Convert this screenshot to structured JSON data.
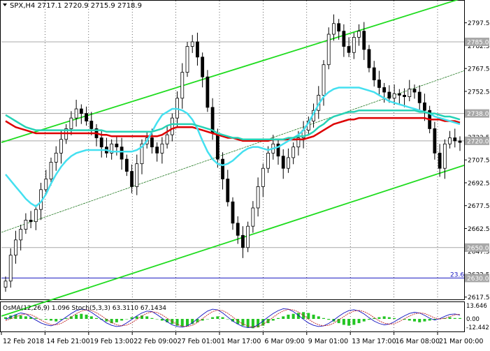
{
  "header": {
    "symbol_line": "SPX,H4  2717.1 2720.9 2715.9 2718.9",
    "indicator_line": "OsMA(12,26,9) 1.096   Stoch(5,3,3) 63.3110 67.1434"
  },
  "colors": {
    "background": "#ffffff",
    "candle": "#000000",
    "channel_green": "#1fdc1f",
    "ema_red": "#dd0000",
    "ema_cyan": "#44e0f0",
    "ema_aqua": "#26d2b6",
    "level_line": "#a8a8a8",
    "label_box": "#a8a8a8",
    "label_text": "#ffffff",
    "horizontal_blue": "#1818c0",
    "osma_green": "#23c523",
    "stoch_main": "#1010c0",
    "stoch_signal": "#c02020"
  },
  "chart_data": [
    {
      "type": "candlestick",
      "timeframe": "H4",
      "ylim": [
        2616,
        2812
      ],
      "y_ticks": [
        2797.5,
        2782.5,
        2767.5,
        2752.5,
        2737.5,
        2722.5,
        2707.5,
        2692.5,
        2677.5,
        2662.5,
        2647.5,
        2632.5,
        2617.5
      ],
      "y_tick_labels": [
        "2797.5",
        "2782.5",
        "2767.5",
        "2752.5",
        "2737.5",
        "2722.5",
        "2707.5",
        "2692.5",
        "2677.5",
        "2662.5",
        "2647.5",
        "2632.5",
        "2617.5"
      ],
      "x_tick_labels": [
        "12 Feb 2018",
        "14 Feb 21:00",
        "19 Feb 13:00",
        "22 Feb 09:00",
        "27 Feb 01:00",
        "1 Mar 17:00",
        "6 Mar 09:00",
        "9 Mar 01:00",
        "13 Mar 17:00",
        "16 Mar 08:00",
        "21 Mar 00:00"
      ],
      "price_labels": [
        {
          "value": 2785.0,
          "text": "2785.0"
        },
        {
          "value": 2738.0,
          "text": "2738.0"
        },
        {
          "value": 2720.0,
          "text": "2720.0"
        },
        {
          "value": 2650.0,
          "text": "2650.0"
        },
        {
          "value": 2630.0,
          "text": "2630.0"
        }
      ],
      "level_lines": [
        2785.0,
        2738.0,
        2720.0,
        2650.0
      ],
      "blue_line": {
        "value": 2630.0,
        "label": "23.6"
      },
      "closes": [
        2628,
        2645,
        2655,
        2662,
        2668,
        2667,
        2675,
        2688,
        2695,
        2706,
        2712,
        2721,
        2728,
        2735,
        2741,
        2738,
        2733,
        2728,
        2722,
        2716,
        2712,
        2718,
        2716,
        2708,
        2700,
        2690,
        2705,
        2718,
        2722,
        2716,
        2712,
        2718,
        2724,
        2735,
        2748,
        2765,
        2782,
        2785,
        2775,
        2762,
        2742,
        2725,
        2708,
        2695,
        2680,
        2666,
        2658,
        2650,
        2664,
        2676,
        2690,
        2702,
        2712,
        2718,
        2710,
        2702,
        2709,
        2716,
        2722,
        2727,
        2733,
        2740,
        2750,
        2770,
        2790,
        2797,
        2792,
        2782,
        2778,
        2788,
        2792,
        2780,
        2768,
        2760,
        2755,
        2752,
        2748,
        2751,
        2750,
        2749,
        2754,
        2752,
        2745,
        2740,
        2728,
        2712,
        2702,
        2718,
        2722,
        2720,
        2719
      ],
      "moving_averages": [
        {
          "color": "#dd0000",
          "values": [
            2733,
            2731,
            2729,
            2728,
            2727,
            2726,
            2725,
            2725,
            2725,
            2725,
            2725,
            2725,
            2725,
            2725,
            2725,
            2725,
            2725,
            2725,
            2725,
            2724,
            2724,
            2723,
            2723,
            2723,
            2723,
            2723,
            2723,
            2723,
            2723,
            2723,
            2723,
            2724,
            2726,
            2728,
            2729,
            2729,
            2729,
            2729,
            2728,
            2727,
            2726,
            2725,
            2724,
            2723,
            2722,
            2722,
            2721,
            2720,
            2720,
            2720,
            2720,
            2720,
            2720,
            2721,
            2721,
            2721,
            2721,
            2721,
            2721,
            2721,
            2722,
            2723,
            2725,
            2727,
            2729,
            2731,
            2732,
            2733,
            2734,
            2734,
            2735,
            2735,
            2735,
            2735,
            2735,
            2735,
            2735,
            2735,
            2735,
            2735,
            2735,
            2735,
            2735,
            2735,
            2734,
            2734,
            2734,
            2733,
            2733,
            2733,
            2732
          ]
        },
        {
          "color": "#44e0f0",
          "values": [
            2698,
            2694,
            2690,
            2686,
            2682,
            2679,
            2677,
            2680,
            2685,
            2692,
            2698,
            2703,
            2707,
            2710,
            2712,
            2713,
            2714,
            2714,
            2714,
            2714,
            2714,
            2713,
            2713,
            2713,
            2713,
            2713,
            2714,
            2716,
            2720,
            2726,
            2732,
            2737,
            2739,
            2741,
            2741,
            2740,
            2738,
            2734,
            2728,
            2720,
            2713,
            2708,
            2705,
            2704,
            2705,
            2707,
            2710,
            2713,
            2715,
            2716,
            2716,
            2715,
            2714,
            2715,
            2716,
            2718,
            2720,
            2722,
            2724,
            2727,
            2732,
            2738,
            2744,
            2749,
            2752,
            2754,
            2755,
            2755,
            2755,
            2755,
            2755,
            2754,
            2753,
            2752,
            2750,
            2748,
            2746,
            2745,
            2744,
            2743,
            2742,
            2741,
            2740,
            2739,
            2738,
            2736,
            2735,
            2734,
            2733,
            2732,
            2731
          ]
        },
        {
          "color": "#26d2b6",
          "values": [
            2737,
            2735,
            2733,
            2731,
            2729,
            2728,
            2727,
            2727,
            2727,
            2727,
            2727,
            2727,
            2727,
            2727,
            2727,
            2727,
            2727,
            2727,
            2727,
            2727,
            2726,
            2726,
            2726,
            2726,
            2726,
            2726,
            2726,
            2726,
            2726,
            2726,
            2727,
            2728,
            2730,
            2731,
            2731,
            2731,
            2731,
            2731,
            2730,
            2729,
            2728,
            2727,
            2725,
            2724,
            2723,
            2722,
            2722,
            2721,
            2721,
            2721,
            2721,
            2721,
            2721,
            2721,
            2721,
            2721,
            2722,
            2722,
            2723,
            2723,
            2724,
            2726,
            2729,
            2731,
            2734,
            2736,
            2737,
            2738,
            2739,
            2739,
            2740,
            2740,
            2740,
            2740,
            2740,
            2740,
            2740,
            2740,
            2740,
            2740,
            2740,
            2740,
            2739,
            2739,
            2738,
            2738,
            2737,
            2736,
            2736,
            2735,
            2734
          ]
        }
      ],
      "channel": {
        "upper": {
          "start": 2719,
          "end": 2814
        },
        "middle": {
          "start": 2660,
          "end": 2766
        },
        "lower": {
          "start": 2605,
          "end": 2704
        }
      }
    },
    {
      "type": "oscillator",
      "name": "OsMA(12,26,9) / Stoch(5,3,3)",
      "y_tick_labels": [
        "13.646",
        "0.00",
        "-12.442"
      ],
      "osma": [
        2,
        4,
        5,
        4,
        3,
        2,
        1,
        0,
        -1,
        -2,
        -3,
        -1,
        1,
        3,
        5,
        6,
        5,
        3,
        1,
        -1,
        -3,
        -5,
        -4,
        -2,
        0,
        2,
        3,
        4,
        3,
        1,
        0,
        -2,
        -4,
        -6,
        -8,
        -9,
        -8,
        -6,
        -4,
        -2,
        0,
        2,
        3,
        2,
        0,
        -3,
        -6,
        -8,
        -10,
        -11,
        -10,
        -8,
        -5,
        -2,
        1,
        3,
        5,
        6,
        7,
        8,
        7,
        5,
        3,
        1,
        -1,
        -3,
        -5,
        -7,
        -8,
        -7,
        -5,
        -3,
        -1,
        1,
        2,
        3,
        2,
        1,
        0,
        -1,
        -2,
        -3,
        -4,
        -3,
        -2,
        -1,
        0,
        1,
        2,
        1,
        1
      ],
      "stoch_main": [
        45,
        55,
        65,
        72,
        68,
        55,
        42,
        30,
        22,
        18,
        25,
        40,
        55,
        70,
        82,
        88,
        85,
        75,
        60,
        45,
        30,
        20,
        15,
        18,
        30,
        45,
        60,
        72,
        80,
        78,
        65,
        50,
        35,
        22,
        15,
        12,
        18,
        30,
        48,
        65,
        80,
        88,
        85,
        72,
        55,
        38,
        25,
        15,
        10,
        12,
        22,
        38,
        55,
        70,
        82,
        90,
        88,
        78,
        62,
        45,
        30,
        20,
        15,
        18,
        28,
        42,
        58,
        72,
        82,
        86,
        80,
        68,
        52,
        38,
        28,
        22,
        25,
        35,
        48,
        60,
        70,
        75,
        72,
        62,
        50,
        42,
        48,
        58,
        66,
        68,
        63
      ],
      "stoch_signal": [
        40,
        48,
        55,
        64,
        68,
        65,
        55,
        42,
        31,
        23,
        22,
        28,
        40,
        55,
        69,
        80,
        85,
        83,
        73,
        60,
        45,
        32,
        22,
        18,
        21,
        31,
        45,
        59,
        71,
        77,
        74,
        64,
        50,
        36,
        24,
        16,
        15,
        20,
        32,
        48,
        64,
        78,
        84,
        82,
        71,
        55,
        39,
        26,
        17,
        12,
        15,
        24,
        38,
        54,
        69,
        81,
        87,
        85,
        76,
        62,
        46,
        32,
        22,
        18,
        20,
        29,
        43,
        57,
        71,
        80,
        83,
        78,
        67,
        53,
        39,
        29,
        25,
        27,
        36,
        48,
        59,
        68,
        72,
        70,
        61,
        51,
        47,
        49,
        57,
        64,
        67
      ]
    }
  ]
}
